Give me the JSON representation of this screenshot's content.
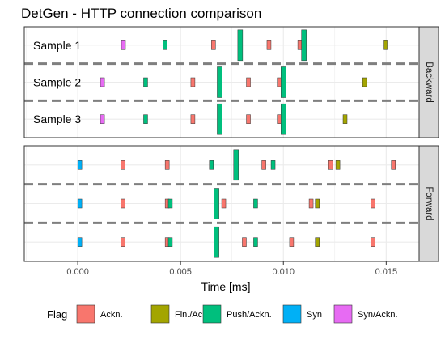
{
  "chart_data": {
    "type": "scatter",
    "title": "DetGen - HTTP connection comparison",
    "xlabel": "Time [ms]",
    "ylabel": "",
    "xlim": [
      -0.0026,
      0.0166
    ],
    "x_ticks": [
      0.0,
      0.005,
      0.01,
      0.015
    ],
    "x_tick_labels": [
      "0.000",
      "0.005",
      "0.010",
      "0.015"
    ],
    "grid": true,
    "legend": {
      "title": "Flag",
      "position": "bottom",
      "entries": [
        {
          "label": "Ackn.",
          "color": "#F8766D"
        },
        {
          "label": "Fin./Ackn.",
          "color": "#A3A500"
        },
        {
          "label": "Push/Ackn.",
          "color": "#00BF7D"
        },
        {
          "label": "Syn",
          "color": "#00B0F6"
        },
        {
          "label": "Syn/Ackn.",
          "color": "#E76BF3"
        }
      ]
    },
    "facets": [
      {
        "strip_label": "Backward",
        "rows": [
          {
            "label": "Sample 1",
            "packets": [
              {
                "x": 0.00222,
                "flag": "Syn/Ackn.",
                "size": "small"
              },
              {
                "x": 0.00425,
                "flag": "Push/Ackn.",
                "size": "small"
              },
              {
                "x": 0.0066,
                "flag": "Ackn.",
                "size": "small"
              },
              {
                "x": 0.0079,
                "flag": "Push/Ackn.",
                "size": "large"
              },
              {
                "x": 0.0093,
                "flag": "Ackn.",
                "size": "small"
              },
              {
                "x": 0.0108,
                "flag": "Ackn.",
                "size": "small"
              },
              {
                "x": 0.011,
                "flag": "Push/Ackn.",
                "size": "large"
              },
              {
                "x": 0.01495,
                "flag": "Fin./Ackn.",
                "size": "small"
              }
            ]
          },
          {
            "label": "Sample 2",
            "packets": [
              {
                "x": 0.0012,
                "flag": "Syn/Ackn.",
                "size": "small"
              },
              {
                "x": 0.0033,
                "flag": "Push/Ackn.",
                "size": "small"
              },
              {
                "x": 0.0056,
                "flag": "Ackn.",
                "size": "small"
              },
              {
                "x": 0.0069,
                "flag": "Push/Ackn.",
                "size": "large"
              },
              {
                "x": 0.0083,
                "flag": "Ackn.",
                "size": "small"
              },
              {
                "x": 0.0098,
                "flag": "Ackn.",
                "size": "small"
              },
              {
                "x": 0.01,
                "flag": "Push/Ackn.",
                "size": "large"
              },
              {
                "x": 0.01395,
                "flag": "Fin./Ackn.",
                "size": "small"
              }
            ]
          },
          {
            "label": "Sample 3",
            "packets": [
              {
                "x": 0.0012,
                "flag": "Syn/Ackn.",
                "size": "small"
              },
              {
                "x": 0.0033,
                "flag": "Push/Ackn.",
                "size": "small"
              },
              {
                "x": 0.0056,
                "flag": "Ackn.",
                "size": "small"
              },
              {
                "x": 0.0069,
                "flag": "Push/Ackn.",
                "size": "large"
              },
              {
                "x": 0.0083,
                "flag": "Ackn.",
                "size": "small"
              },
              {
                "x": 0.0098,
                "flag": "Ackn.",
                "size": "small"
              },
              {
                "x": 0.01,
                "flag": "Push/Ackn.",
                "size": "large"
              },
              {
                "x": 0.013,
                "flag": "Fin./Ackn.",
                "size": "small"
              }
            ]
          }
        ]
      },
      {
        "strip_label": "Forward",
        "rows": [
          {
            "label": "",
            "packets": [
              {
                "x": 0.0001,
                "flag": "Syn",
                "size": "small"
              },
              {
                "x": 0.0022,
                "flag": "Ackn.",
                "size": "small"
              },
              {
                "x": 0.00435,
                "flag": "Ackn.",
                "size": "small"
              },
              {
                "x": 0.0065,
                "flag": "Push/Ackn.",
                "size": "small"
              },
              {
                "x": 0.0077,
                "flag": "Push/Ackn.",
                "size": "large"
              },
              {
                "x": 0.00905,
                "flag": "Ackn.",
                "size": "small"
              },
              {
                "x": 0.0095,
                "flag": "Push/Ackn.",
                "size": "small"
              },
              {
                "x": 0.0123,
                "flag": "Ackn.",
                "size": "small"
              },
              {
                "x": 0.01265,
                "flag": "Fin./Ackn.",
                "size": "small"
              },
              {
                "x": 0.01535,
                "flag": "Ackn.",
                "size": "small"
              }
            ]
          },
          {
            "label": "",
            "packets": [
              {
                "x": 0.0001,
                "flag": "Syn",
                "size": "small"
              },
              {
                "x": 0.0022,
                "flag": "Ackn.",
                "size": "small"
              },
              {
                "x": 0.00435,
                "flag": "Ackn.",
                "size": "small"
              },
              {
                "x": 0.0045,
                "flag": "Push/Ackn.",
                "size": "small"
              },
              {
                "x": 0.00675,
                "flag": "Push/Ackn.",
                "size": "large"
              },
              {
                "x": 0.0071,
                "flag": "Ackn.",
                "size": "small"
              },
              {
                "x": 0.00865,
                "flag": "Push/Ackn.",
                "size": "small"
              },
              {
                "x": 0.01135,
                "flag": "Ackn.",
                "size": "small"
              },
              {
                "x": 0.01165,
                "flag": "Fin./Ackn.",
                "size": "small"
              },
              {
                "x": 0.01435,
                "flag": "Ackn.",
                "size": "small"
              }
            ]
          },
          {
            "label": "",
            "packets": [
              {
                "x": 0.0001,
                "flag": "Syn",
                "size": "small"
              },
              {
                "x": 0.0022,
                "flag": "Ackn.",
                "size": "small"
              },
              {
                "x": 0.00435,
                "flag": "Ackn.",
                "size": "small"
              },
              {
                "x": 0.0045,
                "flag": "Push/Ackn.",
                "size": "small"
              },
              {
                "x": 0.00675,
                "flag": "Push/Ackn.",
                "size": "large"
              },
              {
                "x": 0.0081,
                "flag": "Ackn.",
                "size": "small"
              },
              {
                "x": 0.00865,
                "flag": "Push/Ackn.",
                "size": "small"
              },
              {
                "x": 0.0104,
                "flag": "Ackn.",
                "size": "small"
              },
              {
                "x": 0.01165,
                "flag": "Fin./Ackn.",
                "size": "small"
              },
              {
                "x": 0.01435,
                "flag": "Ackn.",
                "size": "small"
              }
            ]
          }
        ]
      }
    ]
  }
}
